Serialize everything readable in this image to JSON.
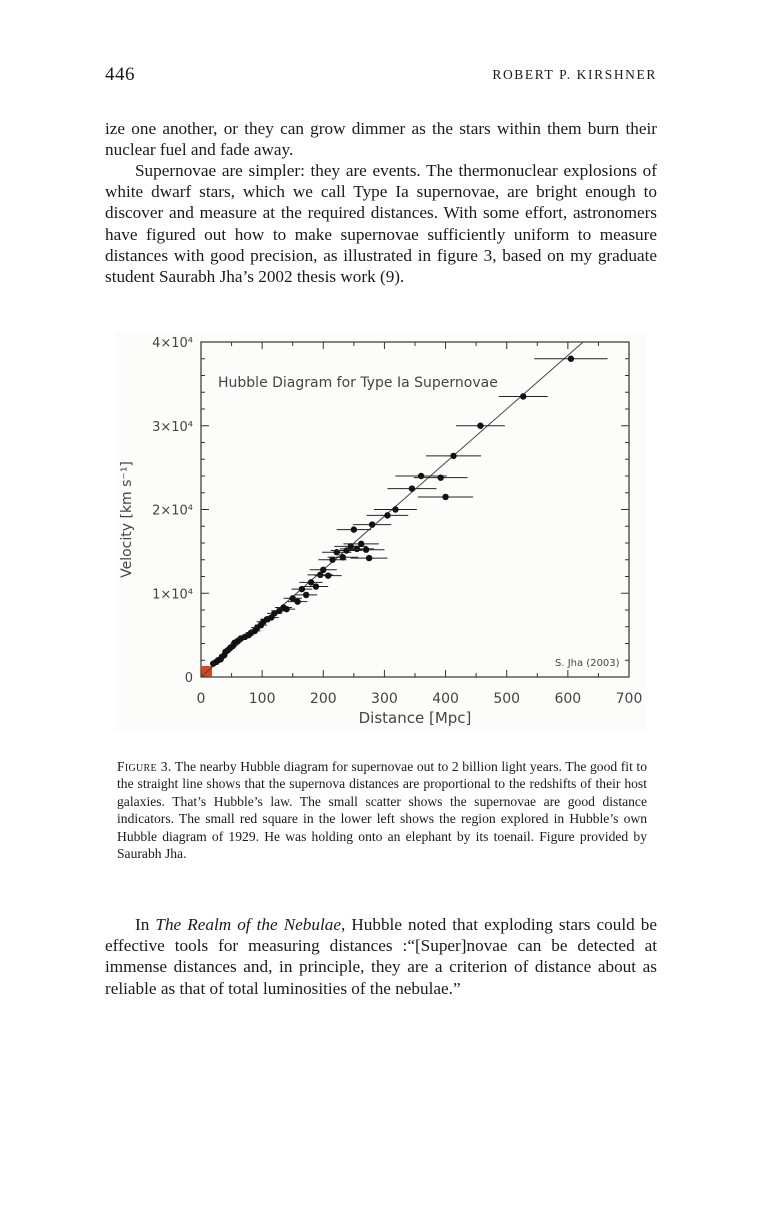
{
  "header": {
    "page_number": "446",
    "running_head": "ROBERT P. KIRSHNER"
  },
  "paragraphs": {
    "p1": "ize one another, or they can grow dimmer as the stars within them burn their nuclear fuel and fade away.",
    "p2": "Supernovae are simpler: they are events. The thermonuclear explosions of white dwarf stars, which we call Type Ia supernovae, are bright enough to discover and measure at the required distances. With some effort, astronomers have figured out how to make supernovae sufficiently uniform to measure distances with good precision, as illustrated in figure 3, based on my graduate student Saurabh Jha’s 2002 thesis work (9).",
    "p3_prefix": "In ",
    "p3_title": "The Realm of the Nebulae",
    "p3_rest": ", Hubble noted that exploding stars could be effective tools for measuring distances :“[Super]novae can be detected at immense distances and, in principle, they are a criterion of distance about as reliable as that of total luminosities of the nebulae.”"
  },
  "caption": {
    "label": "Figure 3.",
    "text": " The nearby Hubble diagram for supernovae out to 2 billion light years. The good fit to the straight line shows that the supernova distances are proportional to the redshifts of their host galaxies. That’s Hubble’s law. The small scatter shows the supernovae are good distance indicators. The small red square in the lower left shows the region explored in Hubble’s own Hubble diagram of 1929. He was holding onto an elephant by its toenail. Figure provided by Saurabh Jha."
  },
  "chart_data": {
    "type": "scatter",
    "title": "Hubble Diagram for Type Ia Supernovae",
    "xlabel": "Distance [Mpc]",
    "ylabel": "Velocity [km s⁻¹]",
    "credit": "S. Jha (2003)",
    "xlim": [
      0,
      700
    ],
    "ylim": [
      0,
      40000
    ],
    "x_ticks": [
      "0",
      "100",
      "200",
      "300",
      "400",
      "500",
      "600",
      "700"
    ],
    "x_tick_values": [
      0,
      100,
      200,
      300,
      400,
      500,
      600,
      700
    ],
    "y_ticks": [
      "0",
      "1×10⁴",
      "2×10⁴",
      "3×10⁴",
      "4×10⁴"
    ],
    "y_tick_values": [
      0,
      10000,
      20000,
      30000,
      40000
    ],
    "fit_line": {
      "slope_km_s_per_Mpc": 64
    },
    "hubble_1929_region": {
      "x": [
        0,
        2
      ],
      "y": [
        0,
        1100
      ],
      "color": "#d9481c"
    },
    "colors": {
      "points": "#111111",
      "axis": "#333333",
      "region": "#d9481c"
    },
    "points": [
      {
        "x": 20,
        "y": 1600,
        "xerr": 3
      },
      {
        "x": 25,
        "y": 1800,
        "xerr": 3
      },
      {
        "x": 28,
        "y": 2000,
        "xerr": 4
      },
      {
        "x": 32,
        "y": 2100,
        "xerr": 4
      },
      {
        "x": 34,
        "y": 2400,
        "xerr": 4
      },
      {
        "x": 38,
        "y": 2600,
        "xerr": 5
      },
      {
        "x": 40,
        "y": 3000,
        "xerr": 5
      },
      {
        "x": 44,
        "y": 3200,
        "xerr": 5
      },
      {
        "x": 48,
        "y": 3500,
        "xerr": 5
      },
      {
        "x": 52,
        "y": 3700,
        "xerr": 6
      },
      {
        "x": 55,
        "y": 4100,
        "xerr": 6
      },
      {
        "x": 60,
        "y": 4300,
        "xerr": 6
      },
      {
        "x": 65,
        "y": 4600,
        "xerr": 7
      },
      {
        "x": 72,
        "y": 4800,
        "xerr": 8
      },
      {
        "x": 78,
        "y": 5000,
        "xerr": 8
      },
      {
        "x": 82,
        "y": 5300,
        "xerr": 9
      },
      {
        "x": 88,
        "y": 5500,
        "xerr": 9
      },
      {
        "x": 92,
        "y": 5900,
        "xerr": 10
      },
      {
        "x": 98,
        "y": 6200,
        "xerr": 10
      },
      {
        "x": 102,
        "y": 6600,
        "xerr": 11
      },
      {
        "x": 108,
        "y": 6900,
        "xerr": 11
      },
      {
        "x": 115,
        "y": 7100,
        "xerr": 12
      },
      {
        "x": 120,
        "y": 7600,
        "xerr": 12
      },
      {
        "x": 128,
        "y": 7900,
        "xerr": 13
      },
      {
        "x": 135,
        "y": 8300,
        "xerr": 14
      },
      {
        "x": 140,
        "y": 8100,
        "xerr": 14
      },
      {
        "x": 150,
        "y": 9400,
        "xerr": 15
      },
      {
        "x": 158,
        "y": 9000,
        "xerr": 16
      },
      {
        "x": 165,
        "y": 10500,
        "xerr": 17
      },
      {
        "x": 172,
        "y": 9800,
        "xerr": 18
      },
      {
        "x": 180,
        "y": 11300,
        "xerr": 19
      },
      {
        "x": 188,
        "y": 10800,
        "xerr": 20
      },
      {
        "x": 195,
        "y": 12200,
        "xerr": 21
      },
      {
        "x": 200,
        "y": 12800,
        "xerr": 22
      },
      {
        "x": 208,
        "y": 12100,
        "xerr": 22
      },
      {
        "x": 215,
        "y": 14000,
        "xerr": 23
      },
      {
        "x": 222,
        "y": 14900,
        "xerr": 24
      },
      {
        "x": 232,
        "y": 14300,
        "xerr": 25
      },
      {
        "x": 238,
        "y": 15100,
        "xerr": 26
      },
      {
        "x": 245,
        "y": 15600,
        "xerr": 27
      },
      {
        "x": 250,
        "y": 17600,
        "xerr": 28
      },
      {
        "x": 255,
        "y": 15300,
        "xerr": 28
      },
      {
        "x": 262,
        "y": 15900,
        "xerr": 29
      },
      {
        "x": 270,
        "y": 15200,
        "xerr": 30
      },
      {
        "x": 275,
        "y": 14200,
        "xerr": 30
      },
      {
        "x": 280,
        "y": 18200,
        "xerr": 31
      },
      {
        "x": 305,
        "y": 19300,
        "xerr": 34
      },
      {
        "x": 318,
        "y": 20000,
        "xerr": 35
      },
      {
        "x": 345,
        "y": 22500,
        "xerr": 40
      },
      {
        "x": 360,
        "y": 24000,
        "xerr": 42
      },
      {
        "x": 400,
        "y": 21500,
        "xerr": 45
      },
      {
        "x": 392,
        "y": 23800,
        "xerr": 44
      },
      {
        "x": 413,
        "y": 26400,
        "xerr": 45
      },
      {
        "x": 457,
        "y": 30000,
        "xerr": 40
      },
      {
        "x": 527,
        "y": 33500,
        "xerr": 40
      },
      {
        "x": 605,
        "y": 38000,
        "xerr": 60
      }
    ]
  }
}
